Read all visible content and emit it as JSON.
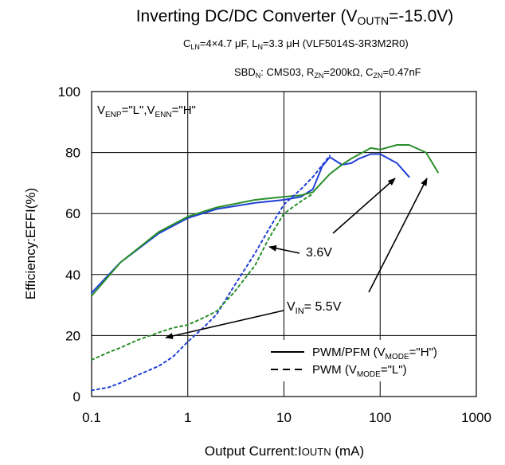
{
  "chart_data": {
    "type": "line",
    "title": {
      "pre": "Inverting DC/DC Converter (V",
      "sub": "OUTN",
      "post": "=-15.0V)"
    },
    "subtitle1": "C_LN=4×4.7 μF, L_N=3.3 μH (VLF5014S-3R3M2R0)",
    "subtitle2": "SBD_N: CMS03, R_ZN=200kΩ, C_ZN=0.47nF",
    "condition": {
      "v1": "V",
      "s1": "ENP",
      "m1": "=\"L\",V",
      "s2": "ENN",
      "m2": "=\"H\""
    },
    "xlabel": {
      "pre": "Output Current:I",
      "sub": "OUTN",
      "post": " (mA)"
    },
    "ylabel": "Efficiency:EFFI(%)",
    "x_scale": "log",
    "xlim": [
      0.1,
      1000
    ],
    "ylim": [
      0,
      100
    ],
    "x_ticks": [
      "0.1",
      "1",
      "10",
      "100",
      "1000"
    ],
    "y_ticks": [
      "0",
      "20",
      "40",
      "60",
      "80",
      "100"
    ],
    "grid": true,
    "legend": {
      "position": "bottom-right",
      "entries": [
        {
          "style": "solid",
          "pre": "PWM/PFM (V",
          "sub": "MODE",
          "post": "=\"H\")"
        },
        {
          "style": "dashed",
          "pre": "PWM (V",
          "sub": "MODE",
          "post": "=\"L\")"
        }
      ]
    },
    "annotations": [
      {
        "text": "3.6V"
      },
      {
        "pre": "V",
        "sub": "IN",
        "post": "= 5.5V"
      }
    ],
    "series": [
      {
        "vin": "3.6V",
        "mode": "PWM/PFM",
        "style": "solid",
        "color": "#1f3fd6",
        "x": [
          0.1,
          0.2,
          0.5,
          1,
          2,
          5,
          10,
          15,
          20,
          25,
          30,
          40,
          50,
          60,
          80,
          100,
          150,
          200
        ],
        "y": [
          34,
          44,
          53.5,
          58.5,
          61.5,
          63.5,
          64.5,
          65.5,
          68,
          75.5,
          78.5,
          76,
          76.5,
          78,
          79.5,
          79.5,
          76.5,
          72
        ]
      },
      {
        "vin": "5.5V",
        "mode": "PWM/PFM",
        "style": "solid",
        "color": "#2a8f2a",
        "x": [
          0.1,
          0.2,
          0.5,
          1,
          2,
          5,
          10,
          15,
          20,
          30,
          40,
          50,
          70,
          80,
          100,
          150,
          200,
          300,
          400
        ],
        "y": [
          33,
          44,
          54,
          59,
          62,
          64.5,
          65.5,
          66,
          67,
          73,
          76,
          78,
          80.5,
          81.5,
          81,
          82.5,
          82.5,
          80,
          73.5
        ]
      },
      {
        "vin": "3.6V",
        "mode": "PWM",
        "style": "dashed",
        "color": "#1f3fd6",
        "x": [
          0.1,
          0.15,
          0.2,
          0.3,
          0.5,
          0.7,
          1,
          1.5,
          2,
          3,
          5,
          7,
          10,
          15,
          20,
          30
        ],
        "y": [
          2,
          3,
          4.5,
          7,
          10,
          13,
          18,
          23,
          27,
          36,
          47,
          55,
          63,
          68,
          72,
          79
        ]
      },
      {
        "vin": "5.5V",
        "mode": "PWM",
        "style": "dashed",
        "color": "#2a8f2a",
        "x": [
          0.1,
          0.15,
          0.2,
          0.3,
          0.5,
          0.7,
          1,
          1.5,
          2,
          3,
          5,
          7,
          10,
          15,
          20
        ],
        "y": [
          12,
          14.5,
          16,
          18.5,
          21,
          22.5,
          23.5,
          26,
          28,
          34,
          43,
          52,
          60,
          64,
          66.5
        ]
      }
    ]
  }
}
